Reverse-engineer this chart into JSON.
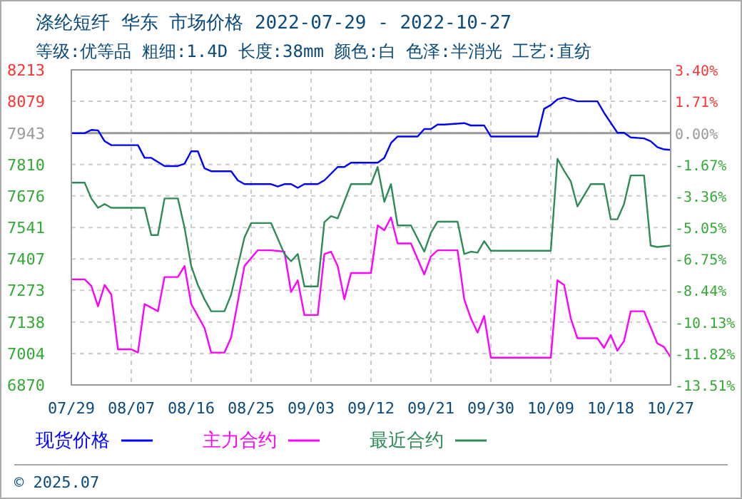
{
  "chart_data": {
    "type": "line",
    "title": "涤纶短纤 华东 市场价格 2022-07-29 - 2022-10-27",
    "subtitle": "等级:优等品 粗细:1.4D 长度:38mm 颜色:白 色泽:半消光 工艺:直纺",
    "annotations": [
      "© 2025.07"
    ],
    "ylim": [
      6870,
      8213
    ],
    "yticks": [
      6870,
      7004,
      7138,
      7273,
      7407,
      7541,
      7676,
      7810,
      7943,
      8079,
      8213
    ],
    "y2lim": [
      -13.51,
      3.4
    ],
    "y2ticks": [
      {
        "value": -13.51,
        "label": "-13.51%"
      },
      {
        "value": -11.82,
        "label": "-11.82%"
      },
      {
        "value": -10.13,
        "label": "-10.13%"
      },
      {
        "value": -8.44,
        "label": "-8.44%"
      },
      {
        "value": -6.75,
        "label": "-6.75%"
      },
      {
        "value": -5.05,
        "label": "-5.05%"
      },
      {
        "value": -3.36,
        "label": "-3.36%"
      },
      {
        "value": -1.67,
        "label": "-1.67%"
      },
      {
        "value": 0,
        "label": "0.00%"
      },
      {
        "value": 1.71,
        "label": "1.71%"
      },
      {
        "value": 3.4,
        "label": "3.40%"
      }
    ],
    "xlim": [
      "2022-07-29",
      "2022-10-27"
    ],
    "xticks": [
      {
        "value": "2022-07-29",
        "label": "07/29"
      },
      {
        "value": "2022-08-07",
        "label": "08/07"
      },
      {
        "value": "2022-08-16",
        "label": "08/16"
      },
      {
        "value": "2022-08-25",
        "label": "08/25"
      },
      {
        "value": "2022-09-03",
        "label": "09/03"
      },
      {
        "value": "2022-09-12",
        "label": "09/12"
      },
      {
        "value": "2022-09-21",
        "label": "09/21"
      },
      {
        "value": "2022-09-30",
        "label": "09/30"
      },
      {
        "value": "2022-10-09",
        "label": "10/09"
      },
      {
        "value": "2022-10-18",
        "label": "10/18"
      },
      {
        "value": "2022-10-27",
        "label": "10/27"
      }
    ],
    "ref_lines": [
      {
        "axis": "y",
        "value": 7943,
        "color": "#999999"
      }
    ],
    "grid": true,
    "legend": "bottom",
    "marker": "none",
    "line_style": "solid",
    "series": [
      {
        "name": "现货价格",
        "color": "#0000ff",
        "x": [
          "2022-07-29",
          "2022-07-31",
          "2022-08-01",
          "2022-08-02",
          "2022-08-03",
          "2022-08-04",
          "2022-08-08",
          "2022-08-09",
          "2022-08-10",
          "2022-08-12",
          "2022-08-14",
          "2022-08-15",
          "2022-08-16",
          "2022-08-17",
          "2022-08-18",
          "2022-08-19",
          "2022-08-22",
          "2022-08-23",
          "2022-08-24",
          "2022-08-28",
          "2022-08-29",
          "2022-08-30",
          "2022-08-31",
          "2022-09-01",
          "2022-09-02",
          "2022-09-04",
          "2022-09-05",
          "2022-09-07",
          "2022-09-08",
          "2022-09-09",
          "2022-09-10",
          "2022-09-13",
          "2022-09-14",
          "2022-09-15",
          "2022-09-16",
          "2022-09-19",
          "2022-09-20",
          "2022-09-21",
          "2022-09-22",
          "2022-09-23",
          "2022-09-26",
          "2022-09-27",
          "2022-09-29",
          "2022-09-30",
          "2022-10-07",
          "2022-10-08",
          "2022-10-09",
          "2022-10-10",
          "2022-10-11",
          "2022-10-12",
          "2022-10-13",
          "2022-10-16",
          "2022-10-17",
          "2022-10-19",
          "2022-10-20",
          "2022-10-21",
          "2022-10-23",
          "2022-10-24",
          "2022-10-25",
          "2022-10-26",
          "2022-10-27"
        ],
        "values": [
          7943,
          7943,
          7957,
          7955,
          7909,
          7892,
          7892,
          7838,
          7838,
          7803,
          7803,
          7813,
          7866,
          7866,
          7793,
          7781,
          7781,
          7742,
          7726,
          7726,
          7716,
          7726,
          7726,
          7710,
          7726,
          7726,
          7742,
          7799,
          7799,
          7817,
          7817,
          7817,
          7838,
          7901,
          7929,
          7929,
          7961,
          7961,
          7980,
          7980,
          7986,
          7976,
          7976,
          7929,
          7929,
          8047,
          8063,
          8087,
          8095,
          8087,
          8079,
          8079,
          8030,
          7945,
          7945,
          7925,
          7921,
          7909,
          7884,
          7874,
          7872
        ]
      },
      {
        "name": "主力合约",
        "color": "#ff00ff",
        "x": [
          "2022-07-29",
          "2022-07-31",
          "2022-08-01",
          "2022-08-02",
          "2022-08-03",
          "2022-08-04",
          "2022-08-05",
          "2022-08-07",
          "2022-08-08",
          "2022-08-09",
          "2022-08-11",
          "2022-08-12",
          "2022-08-14",
          "2022-08-15",
          "2022-08-16",
          "2022-08-18",
          "2022-08-19",
          "2022-08-21",
          "2022-08-22",
          "2022-08-24",
          "2022-08-26",
          "2022-08-28",
          "2022-08-30",
          "2022-08-31",
          "2022-09-01",
          "2022-09-02",
          "2022-09-04",
          "2022-09-05",
          "2022-09-06",
          "2022-09-07",
          "2022-09-08",
          "2022-09-09",
          "2022-09-10",
          "2022-09-12",
          "2022-09-13",
          "2022-09-14",
          "2022-09-15",
          "2022-09-16",
          "2022-09-18",
          "2022-09-20",
          "2022-09-21",
          "2022-09-22",
          "2022-09-25",
          "2022-09-26",
          "2022-09-27",
          "2022-09-28",
          "2022-09-29",
          "2022-09-30",
          "2022-10-09",
          "2022-10-10",
          "2022-10-11",
          "2022-10-12",
          "2022-10-13",
          "2022-10-16",
          "2022-10-17",
          "2022-10-18",
          "2022-10-19",
          "2022-10-20",
          "2022-10-21",
          "2022-10-23",
          "2022-10-25",
          "2022-10-26",
          "2022-10-27"
        ],
        "values": [
          7320,
          7320,
          7292,
          7205,
          7296,
          7255,
          7022,
          7022,
          7008,
          7215,
          7184,
          7330,
          7330,
          7377,
          7215,
          7113,
          7008,
          7008,
          7073,
          7377,
          7444,
          7444,
          7438,
          7266,
          7316,
          7168,
          7168,
          7428,
          7438,
          7377,
          7235,
          7347,
          7347,
          7347,
          7550,
          7529,
          7584,
          7473,
          7473,
          7341,
          7418,
          7444,
          7444,
          7235,
          7154,
          7093,
          7164,
          6986,
          6986,
          7316,
          7296,
          7154,
          7069,
          7069,
          7028,
          7083,
          7016,
          7057,
          7184,
          7184,
          7047,
          7032,
          6988
        ]
      },
      {
        "name": "最近合约",
        "color": "#2e8b57",
        "x": [
          "2022-07-29",
          "2022-07-31",
          "2022-08-01",
          "2022-08-02",
          "2022-08-03",
          "2022-08-04",
          "2022-08-09",
          "2022-08-10",
          "2022-08-11",
          "2022-08-12",
          "2022-08-14",
          "2022-08-15",
          "2022-08-16",
          "2022-08-17",
          "2022-08-18",
          "2022-08-19",
          "2022-08-21",
          "2022-08-22",
          "2022-08-24",
          "2022-08-25",
          "2022-08-28",
          "2022-08-30",
          "2022-08-31",
          "2022-09-01",
          "2022-09-02",
          "2022-09-04",
          "2022-09-05",
          "2022-09-06",
          "2022-09-07",
          "2022-09-09",
          "2022-09-10",
          "2022-09-12",
          "2022-09-13",
          "2022-09-14",
          "2022-09-15",
          "2022-09-16",
          "2022-09-18",
          "2022-09-20",
          "2022-09-21",
          "2022-09-22",
          "2022-09-25",
          "2022-09-26",
          "2022-09-27",
          "2022-09-28",
          "2022-09-29",
          "2022-09-30",
          "2022-10-09",
          "2022-10-10",
          "2022-10-11",
          "2022-10-12",
          "2022-10-13",
          "2022-10-15",
          "2022-10-17",
          "2022-10-18",
          "2022-10-19",
          "2022-10-20",
          "2022-10-21",
          "2022-10-23",
          "2022-10-24",
          "2022-10-25",
          "2022-10-27"
        ],
        "values": [
          7732,
          7732,
          7665,
          7625,
          7641,
          7625,
          7625,
          7509,
          7509,
          7665,
          7665,
          7540,
          7377,
          7296,
          7235,
          7184,
          7184,
          7255,
          7499,
          7560,
          7560,
          7428,
          7397,
          7428,
          7290,
          7290,
          7564,
          7590,
          7580,
          7726,
          7726,
          7726,
          7799,
          7651,
          7726,
          7550,
          7550,
          7438,
          7519,
          7566,
          7566,
          7428,
          7438,
          7434,
          7483,
          7442,
          7442,
          7834,
          7783,
          7738,
          7631,
          7726,
          7726,
          7576,
          7576,
          7641,
          7763,
          7763,
          7464,
          7458,
          7464
        ]
      }
    ]
  }
}
